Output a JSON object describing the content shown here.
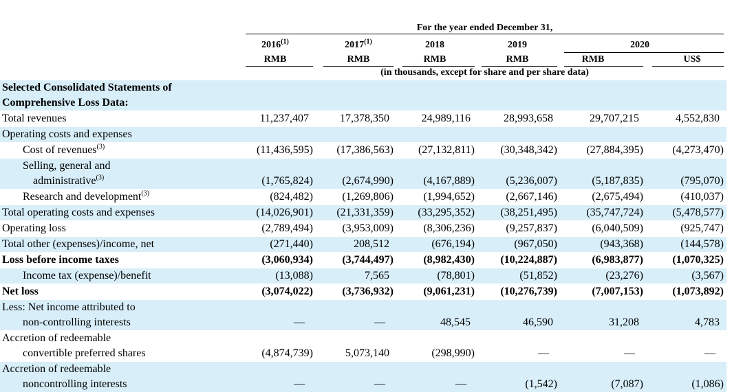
{
  "header": {
    "period": "For the year ended December 31,",
    "years": [
      {
        "text": "2016",
        "note": "(1)"
      },
      {
        "text": "2017",
        "note": "(1)"
      },
      {
        "text": "2018"
      },
      {
        "text": "2019"
      },
      {
        "text": "2020"
      }
    ],
    "currencies": [
      "RMB",
      "RMB",
      "RMB",
      "RMB",
      "RMB",
      "US$"
    ],
    "units": "(in thousands, except for share and per share data)"
  },
  "table": {
    "rows": [
      {
        "label": [
          "Selected Consolidated Statements of",
          "Comprehensive Loss Data:"
        ]
      },
      {
        "label": [
          "Total revenues"
        ],
        "values": [
          "11,237,407",
          "17,378,350",
          "24,989,116",
          "28,993,658",
          "29,707,215",
          "4,552,830"
        ]
      },
      {
        "label": [
          "Operating costs and expenses"
        ]
      },
      {
        "label": [
          "Cost of revenues"
        ],
        "note": "(3)",
        "values": [
          "(11,436,595)",
          "(17,386,563)",
          "(27,132,811)",
          "(30,348,342)",
          "(27,884,395)",
          "(4,273,470)"
        ]
      },
      {
        "label": [
          "Selling, general and",
          "administrative"
        ],
        "note": "(3)",
        "values": [
          "(1,765,824)",
          "(2,674,990)",
          "(4,167,889)",
          "(5,236,007)",
          "(5,187,835)",
          "(795,070)"
        ]
      },
      {
        "label": [
          "Research and development"
        ],
        "note": "(3)",
        "values": [
          "(824,482)",
          "(1,269,806)",
          "(1,994,652)",
          "(2,667,146)",
          "(2,675,494)",
          "(410,037)"
        ]
      },
      {
        "label": [
          "Total operating costs and expenses"
        ],
        "values": [
          "(14,026,901)",
          "(21,331,359)",
          "(33,295,352)",
          "(38,251,495)",
          "(35,747,724)",
          "(5,478,577)"
        ]
      },
      {
        "label": [
          "Operating loss"
        ],
        "values": [
          "(2,789,494)",
          "(3,953,009)",
          "(8,306,236)",
          "(9,257,837)",
          "(6,040,509)",
          "(925,747)"
        ]
      },
      {
        "label": [
          "Total other (expenses)/income, net"
        ],
        "values": [
          "(271,440)",
          "208,512",
          "(676,194)",
          "(967,050)",
          "(943,368)",
          "(144,578)"
        ]
      },
      {
        "label": [
          "Loss before income taxes"
        ],
        "values": [
          "(3,060,934)",
          "(3,744,497)",
          "(8,982,430)",
          "(10,224,887)",
          "(6,983,877)",
          "(1,070,325)"
        ]
      },
      {
        "label": [
          "Income tax (expense)/benefit"
        ],
        "values": [
          "(13,088)",
          "7,565",
          "(78,801)",
          "(51,852)",
          "(23,276)",
          "(3,567)"
        ]
      },
      {
        "label": [
          "Net loss"
        ],
        "values": [
          "(3,074,022)",
          "(3,736,932)",
          "(9,061,231)",
          "(10,276,739)",
          "(7,007,153)",
          "(1,073,892)"
        ]
      },
      {
        "label": [
          "Less: Net income attributed to",
          "non-controlling interests"
        ],
        "values": [
          "—",
          "—",
          "48,545",
          "46,590",
          "31,208",
          "4,783"
        ]
      },
      {
        "label": [
          "Accretion of redeemable",
          "convertible preferred shares"
        ],
        "values": [
          "(4,874,739)",
          "5,073,140",
          "(298,990)",
          "—",
          "—",
          "—"
        ]
      },
      {
        "label": [
          "Accretion of redeemable",
          "noncontrolling interests"
        ],
        "values": [
          "—",
          "—",
          "—",
          "(1,542)",
          "(7,087)",
          "(1,086)"
        ]
      }
    ]
  }
}
